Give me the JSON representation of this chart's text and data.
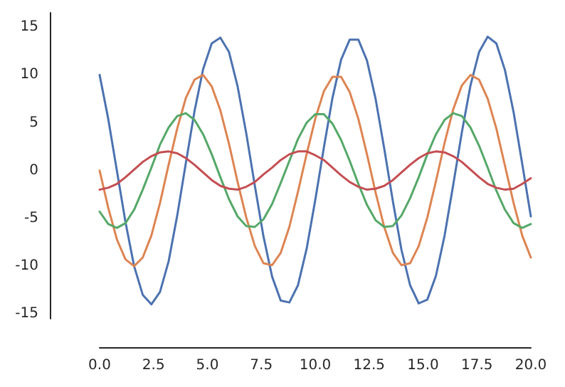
{
  "chart_data": {
    "type": "line",
    "x": [
      0,
      0.4,
      0.8,
      1.2,
      1.6,
      2,
      2.4,
      2.8,
      3.2,
      3.6,
      4,
      4.4,
      4.8,
      5.2,
      5.6,
      6,
      6.4,
      6.8,
      7.2,
      7.6,
      8,
      8.4,
      8.8,
      9.2,
      9.6,
      10,
      10.4,
      10.8,
      11.2,
      11.6,
      12,
      12.4,
      12.8,
      13.2,
      13.6,
      14,
      14.4,
      14.8,
      15.2,
      15.6,
      16,
      16.4,
      16.8,
      17.2,
      17.6,
      18,
      18.4,
      18.8,
      19.2,
      19.6,
      20
    ],
    "series": [
      {
        "color": "#4c72b0",
        "values": [
          10.0,
          5.4,
          0,
          -5.4,
          -10.0,
          -13.0,
          -14.0,
          -12.7,
          -9.5,
          -4.7,
          0.8,
          6.2,
          10.6,
          13.3,
          13.9,
          12.4,
          8.8,
          3.9,
          -1.6,
          -6.9,
          -11.1,
          -13.6,
          -13.8,
          -12.0,
          -8.2,
          -3.1,
          2.4,
          7.6,
          11.6,
          13.7,
          13.7,
          11.5,
          7.5,
          2.3,
          -3.2,
          -8.3,
          -12.0,
          -13.9,
          -13.5,
          -11.0,
          -6.8,
          -1.5,
          4.0,
          8.9,
          12.4,
          14.0,
          13.3,
          10.5,
          6.1,
          0.7,
          -4.8
        ]
      },
      {
        "color": "#dd8452",
        "values": [
          0,
          -3.9,
          -7.2,
          -9.3,
          -10.0,
          -9.1,
          -6.8,
          -3.4,
          0.6,
          4.4,
          7.6,
          9.5,
          10.0,
          8.8,
          6.3,
          2.8,
          -1.2,
          -4.9,
          -7.9,
          -9.7,
          -9.9,
          -8.6,
          -5.9,
          -2.2,
          1.7,
          5.4,
          8.3,
          9.8,
          9.8,
          8.2,
          5.4,
          1.7,
          -2.3,
          -5.9,
          -8.6,
          -9.9,
          -9.7,
          -7.9,
          -4.9,
          -1.1,
          2.9,
          6.4,
          8.9,
          10.0,
          9.5,
          7.5,
          4.4,
          0.5,
          -3.4,
          -6.8,
          -9.1
        ]
      },
      {
        "color": "#55a868",
        "values": [
          -4.3,
          -5.6,
          -6.0,
          -5.5,
          -4.1,
          -2.0,
          0.3,
          2.7,
          4.5,
          5.7,
          6.0,
          5.3,
          3.8,
          1.7,
          -0.7,
          -3.0,
          -4.8,
          -5.8,
          -5.9,
          -5.1,
          -3.5,
          -1.3,
          1.0,
          3.3,
          5.0,
          5.9,
          5.9,
          4.9,
          3.2,
          1.0,
          -1.4,
          -3.6,
          -5.2,
          -5.9,
          -5.8,
          -4.7,
          -2.9,
          -0.7,
          1.7,
          3.8,
          5.3,
          6.0,
          5.7,
          4.5,
          2.6,
          0.3,
          -2.1,
          -4.1,
          -5.5,
          -6.0,
          -5.6
        ]
      },
      {
        "color": "#c44e52",
        "values": [
          -2.0,
          -1.8,
          -1.4,
          -0.7,
          0.1,
          0.9,
          1.5,
          1.9,
          2.0,
          1.8,
          1.3,
          0.6,
          -0.2,
          -1.0,
          -1.6,
          -1.9,
          -2.0,
          -1.7,
          -1.2,
          -0.4,
          0.3,
          1.1,
          1.7,
          2.0,
          2.0,
          1.6,
          1.1,
          0.3,
          -0.5,
          -1.2,
          -1.7,
          -2.0,
          -1.9,
          -1.6,
          -1.0,
          -0.2,
          0.6,
          1.3,
          1.8,
          2.0,
          1.9,
          1.5,
          0.9,
          0.1,
          -0.7,
          -1.4,
          -1.8,
          -2.0,
          -1.9,
          -1.4,
          -0.8
        ]
      }
    ],
    "xlim": [
      0,
      20
    ],
    "xticks": [
      {
        "value": 0,
        "label": "0.0"
      },
      {
        "value": 2.5,
        "label": "2.5"
      },
      {
        "value": 5,
        "label": "5.0"
      },
      {
        "value": 7.5,
        "label": "7.5"
      },
      {
        "value": 10,
        "label": "10.0"
      },
      {
        "value": 12.5,
        "label": "12.5"
      },
      {
        "value": 15,
        "label": "15.0"
      },
      {
        "value": 17.5,
        "label": "17.5"
      },
      {
        "value": 20,
        "label": "20.0"
      }
    ],
    "ylim": [
      -15.5,
      16.5
    ],
    "yticks": [
      -15,
      -10,
      -5,
      0,
      5,
      10,
      15
    ],
    "grid": false,
    "marker": "none",
    "line_style": "solid"
  }
}
